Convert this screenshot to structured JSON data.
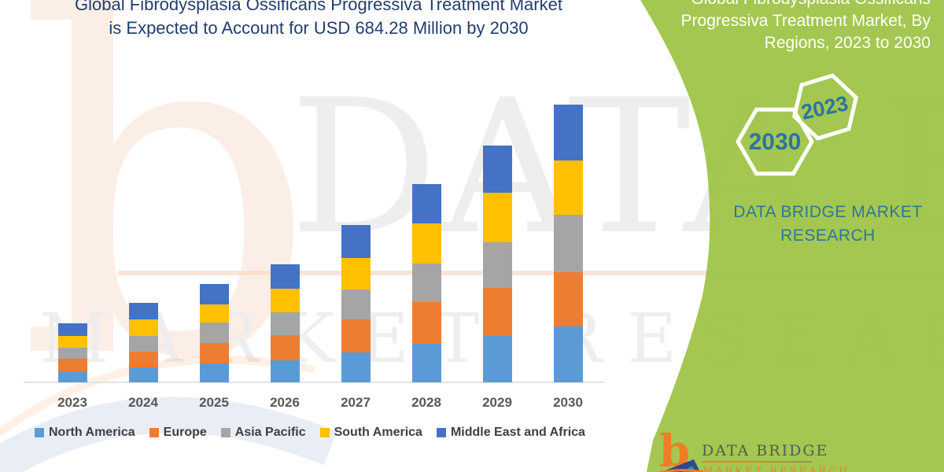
{
  "header": {
    "line1": "Global Fibrodysplasia Ossificans Progressiva Treatment Market",
    "line2": "is Expected to Account for USD 684.28 Million by 2030"
  },
  "sidebar": {
    "heading_lines": [
      "Global Fibrodysplasia Ossificans",
      "Progressiva Treatment Market, By",
      "Regions, 2023 to 2030"
    ],
    "hexagons": [
      {
        "label": "2030"
      },
      {
        "label": "2023"
      }
    ],
    "brand_line1": "DATA BRIDGE MARKET",
    "brand_line2": "RESEARCH",
    "colors": {
      "panel_green": "#a3c751",
      "hex_text": "#2d73a4",
      "brand_text": "#2e7799"
    }
  },
  "watermark": {
    "letter": "b",
    "line1": "DATA BRIDGE",
    "line2": "MARKET RESEARCH"
  },
  "logo": {
    "letter": "b",
    "title": "DATA BRIDGE",
    "subtitle": "MARKET RESEARCH"
  },
  "chart_data": {
    "type": "bar",
    "stacked": true,
    "title": "Global Fibrodysplasia Ossificans Progressiva Treatment Market is Expected to Account for USD 684.28 Million by 2030",
    "unit": "USD Million",
    "categories": [
      "2023",
      "2024",
      "2025",
      "2026",
      "2027",
      "2028",
      "2029",
      "2030"
    ],
    "series": [
      {
        "name": "North America",
        "color": "#5B9BD5",
        "values": [
          27,
          37,
          47,
          55,
          74,
          95,
          114,
          137.28
        ]
      },
      {
        "name": "Europe",
        "color": "#ED7D31",
        "values": [
          31,
          39,
          50,
          62,
          81,
          103,
          118,
          134
        ]
      },
      {
        "name": "Asia Pacific",
        "color": "#A5A5A5",
        "values": [
          27,
          39,
          50,
          56,
          74,
          95,
          114,
          141
        ]
      },
      {
        "name": "South America",
        "color": "#FFC000",
        "values": [
          29,
          41,
          45,
          58,
          78,
          99,
          122,
          134
        ]
      },
      {
        "name": "Middle East and Africa",
        "color": "#4472C4",
        "values": [
          31,
          39,
          50,
          60,
          81,
          97,
          115,
          138
        ]
      }
    ],
    "totals": [
      145,
      195,
      242,
      291,
      388,
      489,
      583,
      684.28
    ],
    "highlight_value": "USD 684.28 Million",
    "highlight_year": "2030",
    "ylim": [
      0,
      700
    ],
    "gridlines": false,
    "legend_position": "bottom"
  }
}
